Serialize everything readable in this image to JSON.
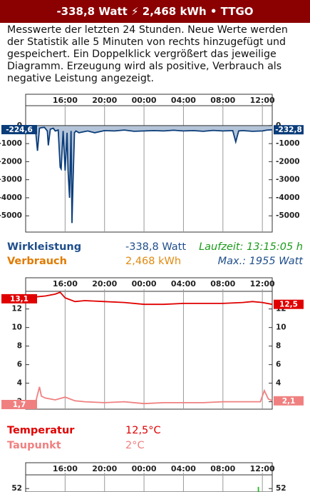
{
  "header": {
    "title": "-338,8 Watt ⚡ 2,468 kWh • TTGO"
  },
  "description": "Messwerte der letzten 24 Stunden. Neue Werte werden der Statistik alle 5 Minuten von rechts hinzugefügt und gespeichert. Ein Doppelklick vergrößert das jeweilige Diagramm. Erzeugung wird als positive, Verbrauch als negative Leistung angezeigt.",
  "chart_data": [
    {
      "type": "line",
      "xlim": [
        12,
        37
      ],
      "xticks": [
        {
          "value": 16,
          "label": "16:00"
        },
        {
          "value": 20,
          "label": "20:00"
        },
        {
          "value": 24,
          "label": "00:00"
        },
        {
          "value": 28,
          "label": "04:00"
        },
        {
          "value": 32,
          "label": "08:00"
        },
        {
          "value": 36,
          "label": "12:00"
        }
      ],
      "ylim": [
        -5900,
        1100
      ],
      "yticks": [
        0,
        -1000,
        -2000,
        -3000,
        -4000,
        -5000
      ],
      "series": [
        {
          "color": "#0b3d7a",
          "area_color": "#b4c4d8",
          "badges": [
            "-224,6",
            "-232,8"
          ],
          "x": [
            12.1,
            12.4,
            12.8,
            13.0,
            13.2,
            13.4,
            13.6,
            13.9,
            14.2,
            14.3,
            14.5,
            14.8,
            15.0,
            15.3,
            15.5,
            15.6,
            15.8,
            16.0,
            16.2,
            16.3,
            16.45,
            16.6,
            16.7,
            16.8,
            16.95,
            17.1,
            17.4,
            17.8,
            18.3,
            19,
            20,
            21,
            22,
            23,
            24,
            25,
            26,
            27,
            28,
            29,
            30,
            31,
            32,
            33,
            33.3,
            33.6,
            34,
            35,
            36,
            36.5,
            37
          ],
          "values": [
            -224.6,
            -150,
            -100,
            -200,
            -1400,
            -150,
            -120,
            -100,
            -300,
            -1100,
            -200,
            -150,
            -300,
            -250,
            -2300,
            -2400,
            -300,
            -2500,
            -400,
            -2500,
            -4000,
            -300,
            -5400,
            -3200,
            -400,
            -300,
            -400,
            -350,
            -300,
            -400,
            -280,
            -300,
            -250,
            -320,
            -300,
            -280,
            -300,
            -260,
            -300,
            -280,
            -320,
            -270,
            -300,
            -280,
            -900,
            -300,
            -280,
            -320,
            -300,
            -250,
            -232.8
          ]
        }
      ]
    },
    {
      "type": "line",
      "xlim": [
        12,
        37
      ],
      "xticks": [
        {
          "value": 16,
          "label": "16:00"
        },
        {
          "value": 20,
          "label": "20:00"
        },
        {
          "value": 24,
          "label": "00:00"
        },
        {
          "value": 28,
          "label": "04:00"
        },
        {
          "value": 32,
          "label": "08:00"
        },
        {
          "value": 36,
          "label": "12:00"
        }
      ],
      "ylim": [
        1.2,
        13.9
      ],
      "yticks": [
        12,
        10,
        8,
        6,
        4,
        2
      ],
      "series": [
        {
          "color": "#e00000",
          "badges": [
            "13,1",
            "12,5"
          ],
          "x": [
            12.1,
            13,
            14,
            15,
            15.5,
            16,
            17,
            18,
            20,
            22,
            24,
            26,
            28,
            30,
            32,
            34,
            35,
            36,
            37
          ],
          "values": [
            13.1,
            13.3,
            13.4,
            13.6,
            13.8,
            13.2,
            12.8,
            12.9,
            12.8,
            12.7,
            12.5,
            12.5,
            12.6,
            12.6,
            12.6,
            12.7,
            12.8,
            12.7,
            12.5
          ]
        },
        {
          "color": "#f08080",
          "badges": [
            "1,7",
            "2,1"
          ],
          "x": [
            12.1,
            13,
            13.4,
            13.6,
            14,
            15,
            16,
            17,
            18,
            20,
            22,
            24,
            26,
            28,
            30,
            32,
            34,
            35.8,
            36.2,
            36.6,
            37
          ],
          "values": [
            1.7,
            1.9,
            3.6,
            2.6,
            2.4,
            2.2,
            2.5,
            2.1,
            2.0,
            1.9,
            2.0,
            1.8,
            1.9,
            1.9,
            1.9,
            2.0,
            2.0,
            2.0,
            3.2,
            2.3,
            2.1
          ]
        }
      ]
    },
    {
      "type": "line",
      "xlim": [
        12,
        37
      ],
      "xticks": [
        {
          "value": 16,
          "label": "16:00"
        },
        {
          "value": 20,
          "label": "20:00"
        },
        {
          "value": 24,
          "label": "00:00"
        },
        {
          "value": 28,
          "label": "04:00"
        },
        {
          "value": 32,
          "label": "08:00"
        },
        {
          "value": 36,
          "label": "12:00"
        }
      ],
      "ylim": [
        51.8,
        52.8
      ],
      "yticks": [
        52
      ],
      "series": [
        {
          "color": "#22bb22",
          "x": [
            35.6,
            35.6
          ],
          "values": [
            52.1,
            51.8
          ]
        }
      ]
    }
  ],
  "readings": [
    {
      "label": "Wirkleistung",
      "value": "-338,8 Watt",
      "info": "Laufzeit: 13:15:05 h"
    },
    {
      "label": "Verbrauch",
      "value": "2,468 kWh",
      "info": "Max.: 1955 Watt"
    },
    {
      "label": "Temperatur",
      "value": "12,5°C"
    },
    {
      "label": "Taupunkt",
      "value": "2°C"
    }
  ]
}
